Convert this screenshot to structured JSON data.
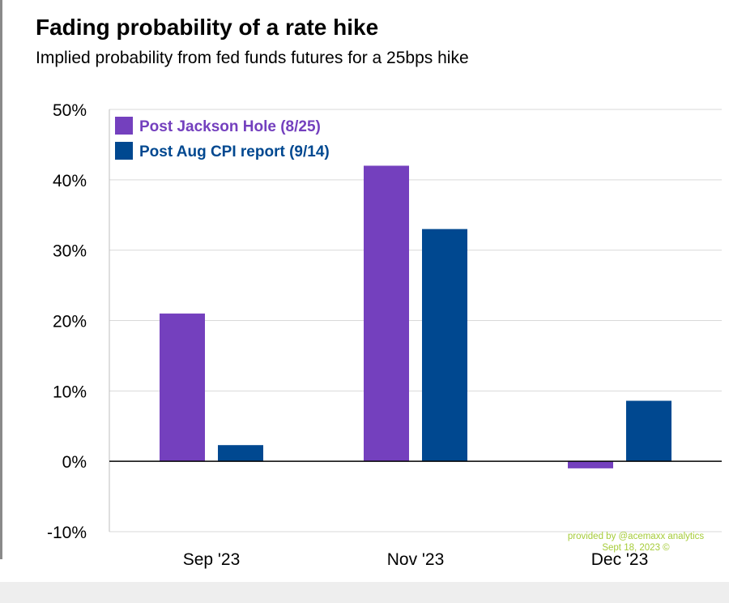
{
  "header": {
    "title": "Fading probability of a rate hike",
    "subtitle": "Implied probability from fed funds futures for a 25bps hike"
  },
  "watermark": {
    "line1": "provided by @acemaxx analytics",
    "line2": "Sept 18, 2023 ©"
  },
  "colors": {
    "series1": "#7440be",
    "series2": "#004890",
    "grid": "#d9d9d9",
    "zero_line": "#000000"
  },
  "chart_data": {
    "type": "bar",
    "title": "Fading probability of a rate hike",
    "subtitle": "Implied probability from fed funds futures for a 25bps hike",
    "categories": [
      "Sep '23",
      "Nov '23",
      "Dec '23"
    ],
    "series": [
      {
        "name": "Post Jackson Hole (8/25)",
        "values": [
          21,
          42,
          -1
        ]
      },
      {
        "name": "Post Aug CPI report (9/14)",
        "values": [
          2.3,
          33,
          8.6
        ]
      }
    ],
    "ylim": [
      -10,
      50
    ],
    "yticks": [
      -10,
      0,
      10,
      20,
      30,
      40,
      50
    ],
    "ytick_labels": [
      "-10%",
      "0%",
      "10%",
      "20%",
      "30%",
      "40%",
      "50%"
    ],
    "xlabel": "",
    "ylabel": "",
    "grid": true,
    "legend": "top-left"
  }
}
